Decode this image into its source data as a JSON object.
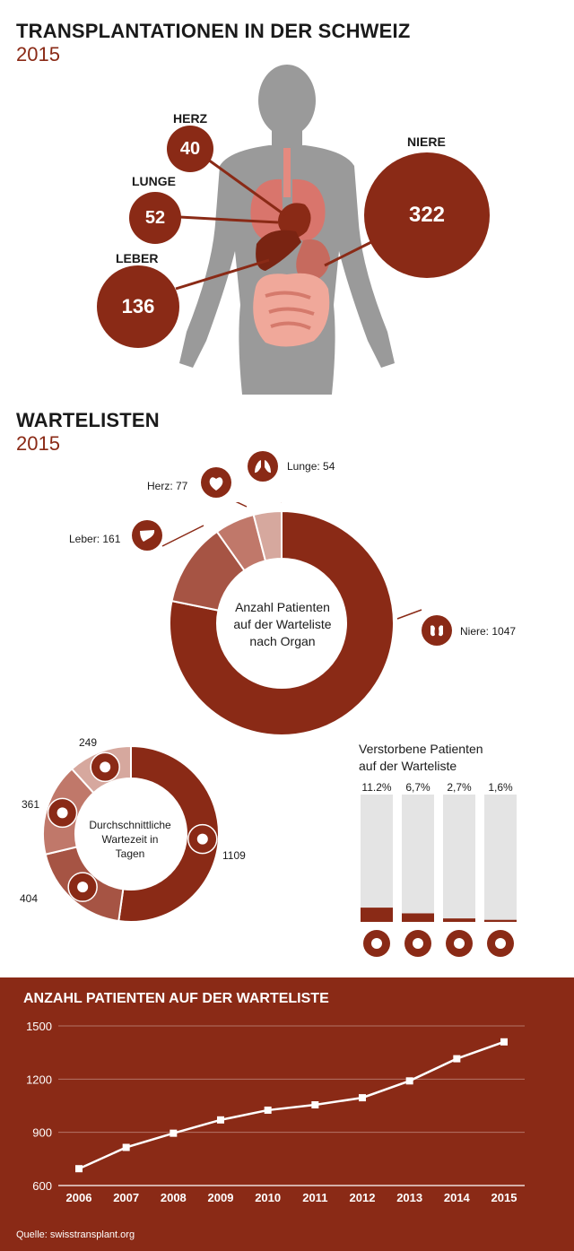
{
  "header": {
    "title": "TRANSPLANTATIONEN IN DER SCHWEIZ",
    "year": "2015"
  },
  "transplants": [
    {
      "organ": "HERZ",
      "value": "40"
    },
    {
      "organ": "LUNGE",
      "value": "52"
    },
    {
      "organ": "LEBER",
      "value": "136"
    },
    {
      "organ": "NIERE",
      "value": "322"
    }
  ],
  "waitlist_section": {
    "title": "WARTELISTEN",
    "year": "2015",
    "donut_center": [
      "Anzahl Patienten",
      "auf der Warteliste",
      "nach Organ"
    ],
    "labels": {
      "lunge": "Lunge: 54",
      "herz": "Herz: 77",
      "leber": "Leber: 161",
      "niere": "Niere: 1047"
    }
  },
  "wait_time": {
    "center": [
      "Durchschnittliche",
      "Wartezeit in",
      "Tagen"
    ],
    "labels": {
      "niere": "1109",
      "lunge": "404",
      "herz": "361",
      "leber": "249"
    }
  },
  "deceased": {
    "title": [
      "Verstorbene Patienten",
      "auf der Warteliste"
    ],
    "labels": [
      "11.2%",
      "6,7%",
      "2,7%",
      "1,6%"
    ]
  },
  "line_chart": {
    "title": "ANZAHL PATIENTEN AUF DER WARTELISTE",
    "source": "Quelle: swisstransplant.org"
  },
  "colors": {
    "primary": "#8a2a16",
    "mid": "#a65444",
    "light": "#c0786a",
    "lighter": "#d6a89e",
    "bar_bg": "#e4e4e4",
    "body": "#9a9a9a"
  },
  "chart_data": [
    {
      "type": "pie",
      "categories": [
        "Niere",
        "Leber",
        "Herz",
        "Lunge"
      ],
      "values": [
        1047,
        161,
        77,
        54
      ],
      "title": "Anzahl Patienten auf der Warteliste nach Organ"
    },
    {
      "type": "pie",
      "categories": [
        "Niere",
        "Lunge",
        "Herz",
        "Leber"
      ],
      "values": [
        1109,
        404,
        361,
        249
      ],
      "title": "Durchschnittliche Wartezeit in Tagen"
    },
    {
      "type": "bar",
      "categories": [
        "Herz",
        "Leber",
        "Lunge",
        "Niere"
      ],
      "values": [
        11.2,
        6.7,
        2.7,
        1.6
      ],
      "title": "Verstorbene Patienten auf der Warteliste",
      "ylim": [
        0,
        100
      ]
    },
    {
      "type": "line",
      "title": "ANZAHL PATIENTEN AUF DER WARTELISTE",
      "x": [
        "2006",
        "2007",
        "2008",
        "2009",
        "2010",
        "2011",
        "2012",
        "2013",
        "2014",
        "2015"
      ],
      "values": [
        695,
        815,
        895,
        970,
        1025,
        1055,
        1095,
        1190,
        1315,
        1410
      ],
      "ylim": [
        600,
        1500
      ],
      "yticks": [
        "600",
        "900",
        "1200",
        "1500"
      ],
      "grid": true
    }
  ]
}
